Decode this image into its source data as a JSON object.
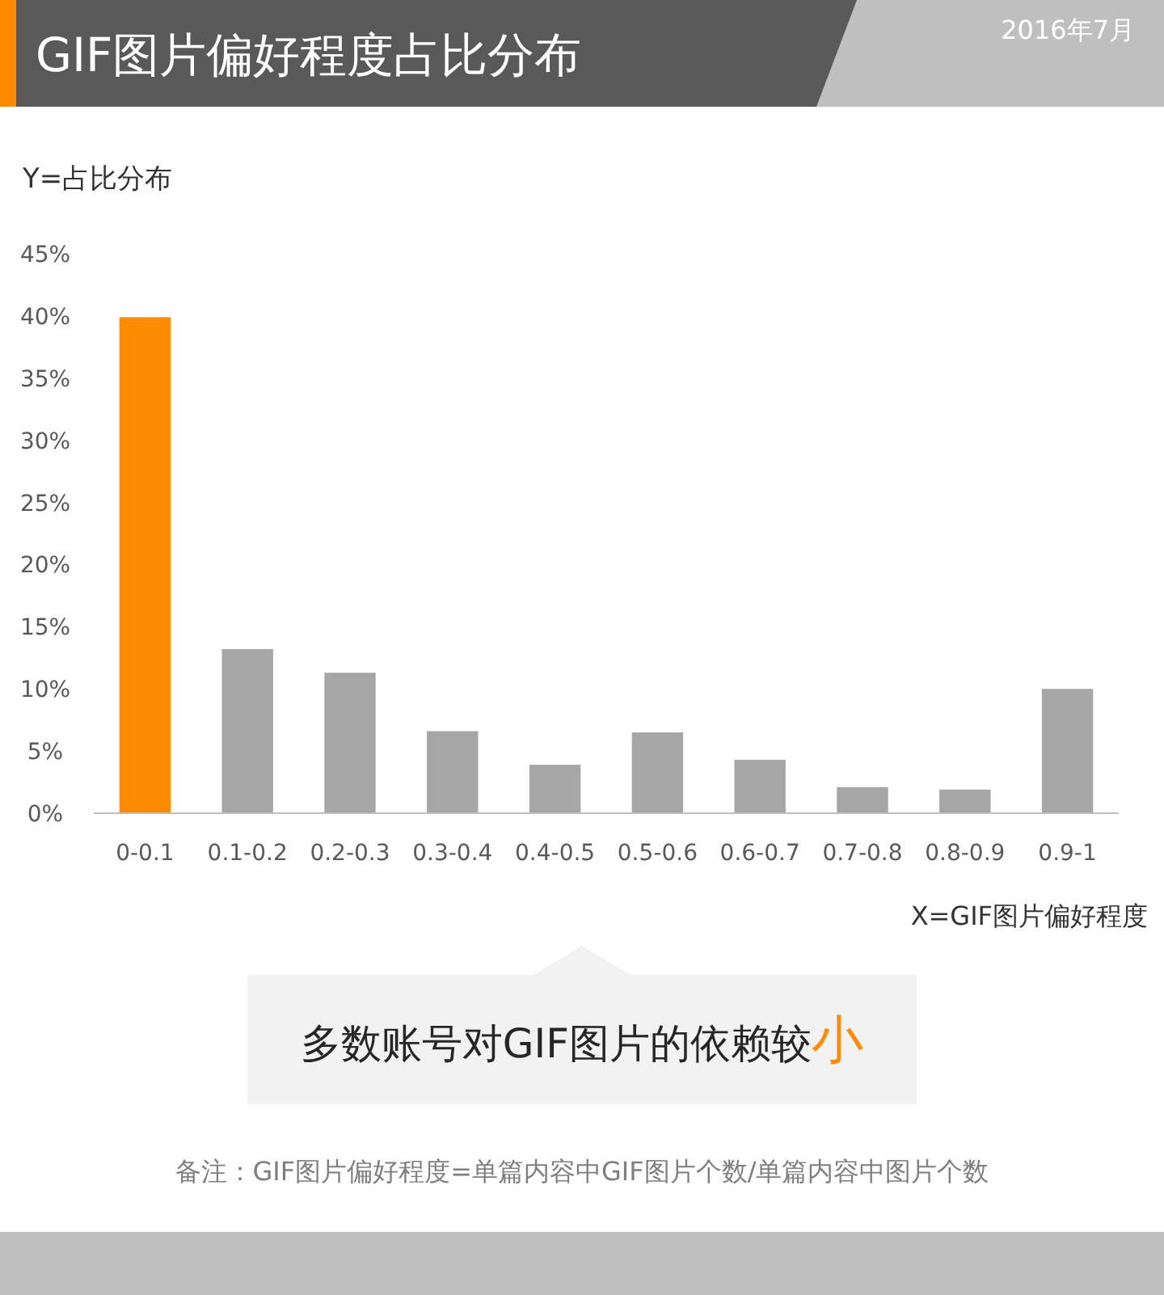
{
  "chart_data": {
    "type": "bar",
    "title": "GIF图片偏好程度占比分布",
    "subtitle": "2016年7月",
    "ylabel": "Y=占比分布",
    "xlabel": "X=GIF图片偏好程度",
    "categories": [
      "0-0.1",
      "0.1-0.2",
      "0.2-0.3",
      "0.3-0.4",
      "0.4-0.5",
      "0.5-0.6",
      "0.6-0.7",
      "0.7-0.8",
      "0.8-0.9",
      "0.9-1"
    ],
    "values": [
      39.9,
      13.2,
      11.3,
      6.6,
      3.9,
      6.5,
      4.3,
      2.1,
      1.9,
      10.0
    ],
    "colors": [
      "#ff8c00",
      "#a6a6a6",
      "#a6a6a6",
      "#a6a6a6",
      "#a6a6a6",
      "#a6a6a6",
      "#a6a6a6",
      "#a6a6a6",
      "#a6a6a6",
      "#a6a6a6"
    ],
    "ylim": [
      0,
      45
    ],
    "yticks": [
      {
        "value": 0,
        "label": "0%"
      },
      {
        "value": 5,
        "label": "5%"
      },
      {
        "value": 10,
        "label": "10%"
      },
      {
        "value": 15,
        "label": "15%"
      },
      {
        "value": 20,
        "label": "20%"
      },
      {
        "value": 25,
        "label": "25%"
      },
      {
        "value": 30,
        "label": "30%"
      },
      {
        "value": 35,
        "label": "35%"
      },
      {
        "value": 40,
        "label": "40%"
      },
      {
        "value": 45,
        "label": "45%"
      }
    ],
    "grid": false,
    "annotations": [
      "多数账号对GIF图片的依赖较小",
      "备注：GIF图片偏好程度=单篇内容中GIF图片个数/单篇内容中图片个数"
    ]
  }
}
